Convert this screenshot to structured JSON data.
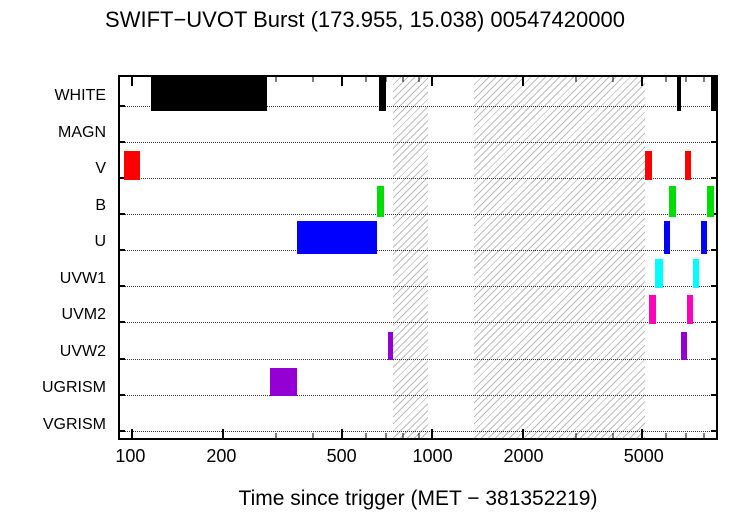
{
  "chart_data": {
    "type": "timeline",
    "title": "SWIFT−UVOT Burst (173.955, 15.038) 00547420000",
    "xlabel": "Time since trigger (MET − 381352219)",
    "x_scale": "log",
    "x_range": [
      91,
      8800
    ],
    "x_major_ticks": [
      100,
      200,
      500,
      1000,
      2000,
      5000
    ],
    "x_minor_ticks": [
      300,
      400,
      600,
      700,
      800,
      900,
      3000,
      4000,
      6000,
      7000,
      8000
    ],
    "grid": "dotted-horizontal-per-row",
    "legend": "none",
    "rows": [
      {
        "filter": "WHITE",
        "color": "#000000",
        "bar_frac": 1.0,
        "intervals": [
          [
            115,
            280
          ],
          [
            665,
            700
          ],
          [
            6500,
            6750
          ],
          [
            8450,
            8800
          ]
        ]
      },
      {
        "filter": "MAGN",
        "color": "#000000",
        "bar_frac": 0.8,
        "intervals": []
      },
      {
        "filter": "V",
        "color": "#ff0000",
        "bar_frac": 0.8,
        "intervals": [
          [
            94,
            106
          ],
          [
            5100,
            5400
          ],
          [
            6950,
            7250
          ]
        ]
      },
      {
        "filter": "B",
        "color": "#00dd00",
        "bar_frac": 0.88,
        "intervals": [
          [
            655,
            690
          ],
          [
            6150,
            6500
          ],
          [
            8200,
            8650
          ]
        ]
      },
      {
        "filter": "U",
        "color": "#0000ff",
        "bar_frac": 0.92,
        "intervals": [
          [
            354,
            655
          ],
          [
            5900,
            6200
          ],
          [
            7850,
            8200
          ]
        ]
      },
      {
        "filter": "UVW1",
        "color": "#00ffff",
        "bar_frac": 0.8,
        "intervals": [
          [
            5500,
            5850
          ],
          [
            7350,
            7750
          ]
        ]
      },
      {
        "filter": "UVM2",
        "color": "#ff00bb",
        "bar_frac": 0.8,
        "intervals": [
          [
            5250,
            5570
          ],
          [
            7050,
            7400
          ]
        ]
      },
      {
        "filter": "UVW2",
        "color": "#9400d3",
        "bar_frac": 0.76,
        "intervals": [
          [
            710,
            740
          ],
          [
            6750,
            7050
          ]
        ]
      },
      {
        "filter": "UGRISM",
        "color": "#9400d3",
        "bar_frac": 0.8,
        "intervals": [
          [
            287,
            354
          ]
        ]
      },
      {
        "filter": "VGRISM",
        "color": "#9400d3",
        "bar_frac": 0.8,
        "intervals": []
      }
    ],
    "hatched_regions": [
      [
        740,
        965
      ],
      [
        1370,
        5100
      ]
    ],
    "colors": {
      "hatch_line": "#bdbdbd",
      "axis": "#000000",
      "background": "#ffffff"
    }
  }
}
